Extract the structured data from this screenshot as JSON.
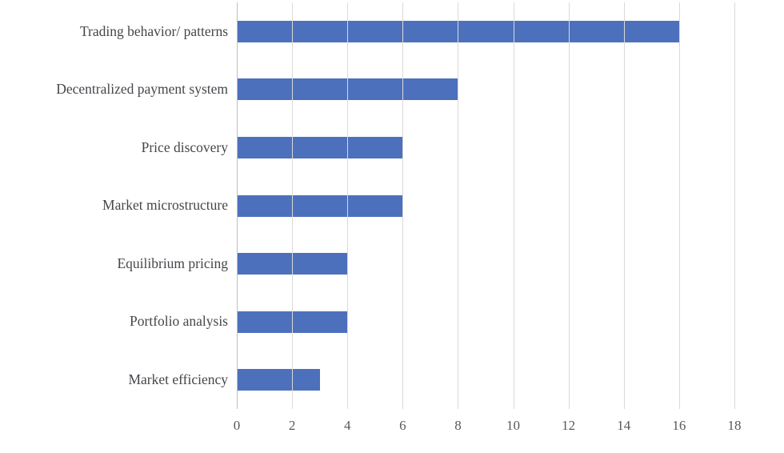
{
  "chart_data": {
    "type": "bar",
    "orientation": "horizontal",
    "categories": [
      "Trading behavior/ patterns",
      "Decentralized payment system",
      "Price discovery",
      "Market microstructure",
      "Equilibrium pricing",
      "Portfolio analysis",
      "Market efficiency"
    ],
    "values": [
      16,
      8,
      6,
      6,
      4,
      4,
      3
    ],
    "title": "",
    "xlabel": "",
    "ylabel": "",
    "xlim": [
      0,
      18
    ],
    "xticks": [
      0,
      2,
      4,
      6,
      8,
      10,
      12,
      14,
      16,
      18
    ],
    "grid": "vertical-on",
    "legend": "none",
    "bar_color": "#4d70bd",
    "gridline_color": "#d9d9d9",
    "axis_line_color": "#bfbfbf",
    "tick_label_color": "#595959",
    "category_label_color": "#44464b"
  }
}
